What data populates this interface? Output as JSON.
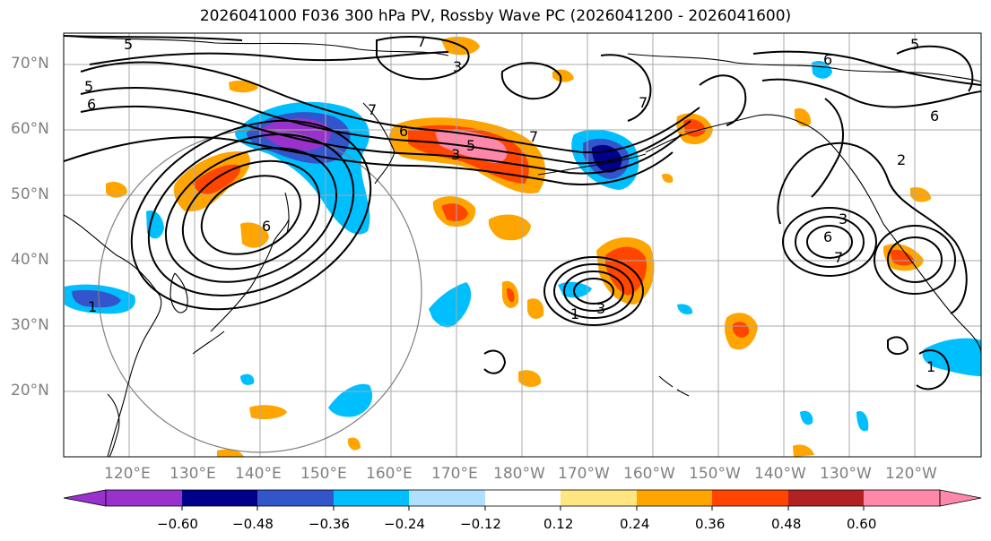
{
  "title": "2026041000 F036 300 hPa PV, Rossby Wave PC (2026041200 - 2026041600)",
  "latitude_labels": [
    "70°N",
    "60°N",
    "50°N",
    "40°N",
    "30°N",
    "20°N"
  ],
  "longitude_labels": [
    "120°E",
    "130°E",
    "140°E",
    "150°E",
    "160°E",
    "170°E",
    "180°W",
    "170°W",
    "160°W",
    "150°W",
    "140°W",
    "130°W",
    "120°W"
  ],
  "contour_labels": [
    "7",
    "5",
    "5",
    "6",
    "7",
    "6",
    "5",
    "3",
    "7",
    "3",
    "6",
    "6",
    "7",
    "1",
    "3",
    "1",
    "6",
    "3",
    "7",
    "1",
    "2",
    "6",
    "5"
  ],
  "colorbar": {
    "tick_labels": [
      "−0.60",
      "−0.48",
      "−0.36",
      "−0.24",
      "−0.12",
      "0.12",
      "0.24",
      "0.36",
      "0.48",
      "0.60"
    ],
    "colors": [
      "#9932cc",
      "#00008b",
      "#3355cc",
      "#00bfff",
      "#b0e0ff",
      "#ffffff",
      "#ffe680",
      "#ffa500",
      "#ff4500",
      "#b22222",
      "#ff88aa"
    ]
  },
  "map_colors": {
    "grid": "#a9a9a9",
    "coast": "#000000",
    "circle": "#808080"
  }
}
